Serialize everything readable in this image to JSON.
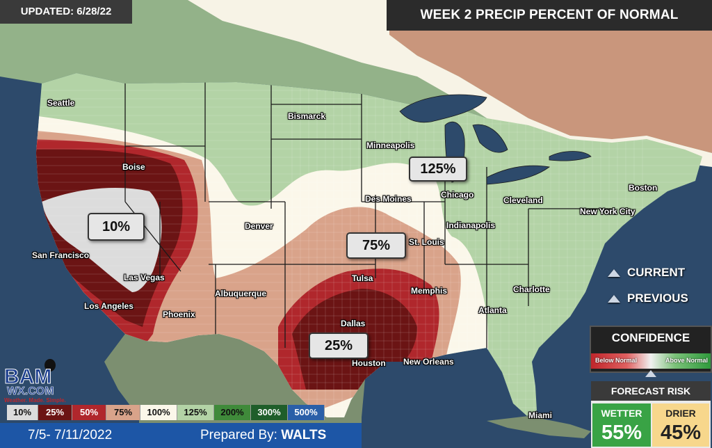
{
  "header": {
    "updated": "UPDATED: 6/28/22",
    "title": "WEEK 2 PRECIP PERCENT OF NORMAL"
  },
  "cities": [
    {
      "name": "Seattle"
    },
    {
      "name": "Bismarck"
    },
    {
      "name": "Minneapolis"
    },
    {
      "name": "Boise"
    },
    {
      "name": "Des Moines"
    },
    {
      "name": "Chicago"
    },
    {
      "name": "Cleveland"
    },
    {
      "name": "Boston"
    },
    {
      "name": "New York City"
    },
    {
      "name": "Denver"
    },
    {
      "name": "Indianapolis"
    },
    {
      "name": "St. Louis"
    },
    {
      "name": "San Francisco"
    },
    {
      "name": "Las Vegas"
    },
    {
      "name": "Tulsa"
    },
    {
      "name": "Memphis"
    },
    {
      "name": "Charlotte"
    },
    {
      "name": "Albuquerque"
    },
    {
      "name": "Los Angeles"
    },
    {
      "name": "Phoenix"
    },
    {
      "name": "Atlanta"
    },
    {
      "name": "Dallas"
    },
    {
      "name": "Houston"
    },
    {
      "name": "New Orleans"
    },
    {
      "name": "Miami"
    }
  ],
  "percent_labels": [
    "125%",
    "10%",
    "75%",
    "25%"
  ],
  "nav": {
    "current_label": "CURRENT",
    "previous_label": "PREVIOUS"
  },
  "confidence": {
    "title": "CONFIDENCE",
    "below_label": "Below Normal",
    "above_label": "Above Normal",
    "level": 0.5
  },
  "forecast_risk": {
    "title": "FORECAST RISK",
    "wetter_label": "WETTER",
    "wetter_value": "55%",
    "drier_label": "DRIER",
    "drier_value": "45%"
  },
  "legend": [
    {
      "label": "10%",
      "color": "#dcdcdc",
      "text_color": "#111"
    },
    {
      "label": "25%",
      "color": "#6b1414",
      "text_color": "#fff"
    },
    {
      "label": "50%",
      "color": "#b0272c",
      "text_color": "#fff"
    },
    {
      "label": "75%",
      "color": "#d9a38a",
      "text_color": "#111"
    },
    {
      "label": "100%",
      "color": "#fbf7ea",
      "text_color": "#111"
    },
    {
      "label": "125%",
      "color": "#b3d3a6",
      "text_color": "#111"
    },
    {
      "label": "200%",
      "color": "#3f8a3a",
      "text_color": "#111"
    },
    {
      "label": "300%",
      "color": "#1f5e2a",
      "text_color": "#fff"
    },
    {
      "label": "500%",
      "color": "#2a5fa8",
      "text_color": "#fff"
    }
  ],
  "logo": {
    "brand": "BAM",
    "site": "WX.COM",
    "tagline": "Weather. Made. Simple."
  },
  "footer": {
    "dates": "7/5- 7/11/2022",
    "prepared_prefix": "Prepared By:",
    "prepared_by": "WALTS"
  }
}
